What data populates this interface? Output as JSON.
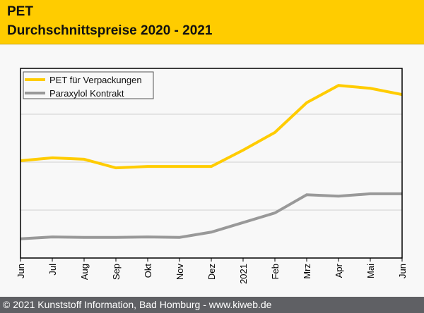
{
  "header": {
    "title": "PET",
    "subtitle": "Durchschnittspreise 2020 - 2021"
  },
  "footer": {
    "text": "© 2021 Kunststoff Information, Bad Homburg - www.kiweb.de"
  },
  "chart_data": {
    "type": "line",
    "title": "",
    "xlabel": "",
    "ylabel": "",
    "categories": [
      "Jun",
      "Jul",
      "Aug",
      "Sep",
      "Okt",
      "Nov",
      "Dez",
      "2021",
      "Feb",
      "Mrz",
      "Apr",
      "Mai",
      "Jun"
    ],
    "ylim": [
      0,
      4
    ],
    "y_tick_labels_shown": false,
    "grid": "horizontal",
    "legend": "top-left",
    "series": [
      {
        "name": "PET für Verpackungen",
        "color": "#ffcc00",
        "values": [
          2.03,
          2.09,
          2.06,
          1.88,
          1.91,
          1.91,
          1.91,
          2.25,
          2.62,
          3.24,
          3.6,
          3.54,
          3.41
        ]
      },
      {
        "name": "Paraxylol Kontrakt",
        "color": "#999999",
        "values": [
          0.4,
          0.44,
          0.43,
          0.43,
          0.44,
          0.43,
          0.54,
          0.74,
          0.94,
          1.32,
          1.29,
          1.34,
          1.34
        ]
      }
    ]
  }
}
